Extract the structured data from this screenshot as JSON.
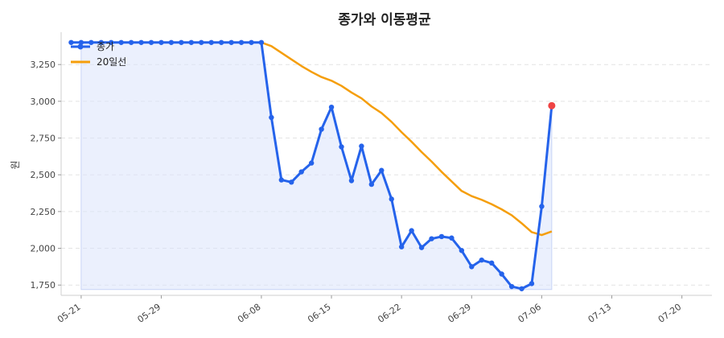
{
  "chart_data": {
    "type": "line",
    "title": "종가와 이동평균",
    "ylabel": "원",
    "xlabel": "",
    "ylim": [
      1680,
      3470
    ],
    "yticks": [
      1750,
      2000,
      2250,
      2500,
      2750,
      3000,
      3250
    ],
    "ytick_labels": [
      "1,750",
      "2,000",
      "2,250",
      "2,500",
      "2,750",
      "3,000",
      "3,250"
    ],
    "xticks": [
      {
        "day": 21,
        "label": "05-21"
      },
      {
        "day": 29,
        "label": "05-29"
      },
      {
        "day": 39,
        "label": "06-08"
      },
      {
        "day": 46,
        "label": "06-15"
      },
      {
        "day": 53,
        "label": "06-22"
      },
      {
        "day": 60,
        "label": "06-29"
      },
      {
        "day": 67,
        "label": "07-06"
      },
      {
        "day": 74,
        "label": "07-13"
      },
      {
        "day": 81,
        "label": "07-20"
      }
    ],
    "grid": true,
    "legend_position": "top-left",
    "colors": {
      "close": "#2563eb",
      "ma": "#f59e0b",
      "fill": "#dbe4fb",
      "last_point": "#ef4444",
      "grid": "#e3e3e3"
    },
    "series": [
      {
        "name": "종가",
        "key": "close",
        "points": [
          [
            20,
            3400
          ],
          [
            21,
            3400
          ],
          [
            22,
            3400
          ],
          [
            23,
            3400
          ],
          [
            24,
            3400
          ],
          [
            25,
            3400
          ],
          [
            26,
            3400
          ],
          [
            27,
            3400
          ],
          [
            28,
            3400
          ],
          [
            29,
            3400
          ],
          [
            30,
            3400
          ],
          [
            31,
            3400
          ],
          [
            32,
            3400
          ],
          [
            33,
            3400
          ],
          [
            34,
            3400
          ],
          [
            35,
            3400
          ],
          [
            36,
            3400
          ],
          [
            37,
            3400
          ],
          [
            38,
            3400
          ],
          [
            39,
            3400
          ],
          [
            40,
            2890
          ],
          [
            41,
            2465
          ],
          [
            42,
            2450
          ],
          [
            43,
            2520
          ],
          [
            44,
            2580
          ],
          [
            45,
            2810
          ],
          [
            46,
            2960
          ],
          [
            47,
            2690
          ],
          [
            48,
            2460
          ],
          [
            49,
            2695
          ],
          [
            50,
            2435
          ],
          [
            51,
            2530
          ],
          [
            52,
            2335
          ],
          [
            53,
            2010
          ],
          [
            54,
            2120
          ],
          [
            55,
            2005
          ],
          [
            56,
            2065
          ],
          [
            57,
            2080
          ],
          [
            58,
            2070
          ],
          [
            59,
            1985
          ],
          [
            60,
            1875
          ],
          [
            61,
            1920
          ],
          [
            62,
            1900
          ],
          [
            63,
            1825
          ],
          [
            64,
            1740
          ],
          [
            65,
            1725
          ],
          [
            66,
            1760
          ],
          [
            67,
            2285
          ],
          [
            68,
            2970
          ]
        ]
      },
      {
        "name": "20일선",
        "key": "ma",
        "points": [
          [
            20,
            3400
          ],
          [
            21,
            3400
          ],
          [
            22,
            3400
          ],
          [
            23,
            3400
          ],
          [
            24,
            3400
          ],
          [
            25,
            3400
          ],
          [
            26,
            3400
          ],
          [
            27,
            3400
          ],
          [
            28,
            3400
          ],
          [
            29,
            3400
          ],
          [
            30,
            3400
          ],
          [
            31,
            3400
          ],
          [
            32,
            3400
          ],
          [
            33,
            3400
          ],
          [
            34,
            3400
          ],
          [
            35,
            3400
          ],
          [
            36,
            3400
          ],
          [
            37,
            3400
          ],
          [
            38,
            3400
          ],
          [
            39,
            3400
          ],
          [
            40,
            3375
          ],
          [
            41,
            3330
          ],
          [
            42,
            3285
          ],
          [
            43,
            3240
          ],
          [
            44,
            3200
          ],
          [
            45,
            3165
          ],
          [
            46,
            3140
          ],
          [
            47,
            3105
          ],
          [
            48,
            3060
          ],
          [
            49,
            3020
          ],
          [
            50,
            2965
          ],
          [
            51,
            2920
          ],
          [
            52,
            2860
          ],
          [
            53,
            2790
          ],
          [
            54,
            2725
          ],
          [
            55,
            2655
          ],
          [
            56,
            2590
          ],
          [
            57,
            2520
          ],
          [
            58,
            2455
          ],
          [
            59,
            2390
          ],
          [
            60,
            2355
          ],
          [
            61,
            2330
          ],
          [
            62,
            2300
          ],
          [
            63,
            2265
          ],
          [
            64,
            2225
          ],
          [
            65,
            2170
          ],
          [
            66,
            2110
          ],
          [
            67,
            2090
          ],
          [
            68,
            2115
          ]
        ]
      }
    ]
  }
}
